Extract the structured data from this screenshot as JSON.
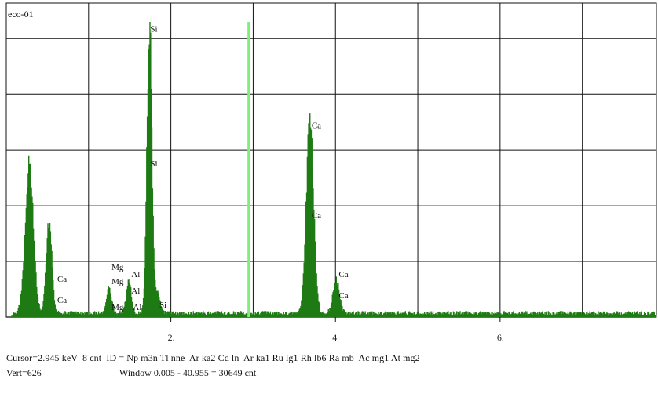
{
  "title": "eco-01",
  "status": {
    "cursor_line": "Cursor=2.945 keV  8 cnt  ID = Np m3n Tl nne  Ar ka2 Cd ln  Ar ka1 Ru lg1 Rh lb6 Ra mb  Ac mg1 At mg2",
    "vert": "Vert=626",
    "window": "Window 0.005 - 40.955 = 30649 cnt"
  },
  "colors": {
    "spectrum": "#1e7a12",
    "cursor": "#7ef07a",
    "grid": "#111111",
    "background": "#ffffff"
  },
  "chart_data": {
    "type": "area",
    "title": "eco-01",
    "xlabel": "",
    "ylabel": "",
    "xlim": [
      0,
      7.9
    ],
    "ylim": [
      0,
      626
    ],
    "x_ticks": [
      2,
      4,
      6
    ],
    "x_tick_labels": [
      "2.",
      "4",
      "6."
    ],
    "grid": true,
    "cursor_kev": 2.945,
    "baseline_counts": 10,
    "peaks": [
      {
        "kev": 0.28,
        "counts": 310,
        "width": 0.05
      },
      {
        "kev": 0.52,
        "counts": 195,
        "width": 0.035
      },
      {
        "kev": 1.25,
        "counts": 55,
        "width": 0.03
      },
      {
        "kev": 1.49,
        "counts": 70,
        "width": 0.03
      },
      {
        "kev": 1.74,
        "counts": 620,
        "width": 0.03
      },
      {
        "kev": 1.84,
        "counts": 45,
        "width": 0.03
      },
      {
        "kev": 3.69,
        "counts": 410,
        "width": 0.045
      },
      {
        "kev": 4.01,
        "counts": 70,
        "width": 0.04
      }
    ],
    "annotations": [
      {
        "text": "Si",
        "kev": 1.75,
        "counts": 605
      },
      {
        "text": "Si",
        "kev": 1.75,
        "counts": 320
      },
      {
        "text": "Si",
        "kev": 1.86,
        "counts": 20
      },
      {
        "text": "Ca",
        "kev": 3.71,
        "counts": 400
      },
      {
        "text": "Ca",
        "kev": 3.71,
        "counts": 210
      },
      {
        "text": "Ca",
        "kev": 4.04,
        "counts": 85
      },
      {
        "text": "Ca",
        "kev": 4.04,
        "counts": 40
      },
      {
        "text": "Ca",
        "kev": 0.62,
        "counts": 75
      },
      {
        "text": "Ca",
        "kev": 0.62,
        "counts": 30
      },
      {
        "text": "Mg",
        "kev": 1.28,
        "counts": 100
      },
      {
        "text": "Mg",
        "kev": 1.28,
        "counts": 70
      },
      {
        "text": "Al",
        "kev": 1.52,
        "counts": 85
      },
      {
        "text": "Al",
        "kev": 1.52,
        "counts": 50
      },
      {
        "text": "Al",
        "kev": 1.54,
        "counts": 15
      },
      {
        "text": "Mg",
        "kev": 1.28,
        "counts": 15
      }
    ]
  }
}
